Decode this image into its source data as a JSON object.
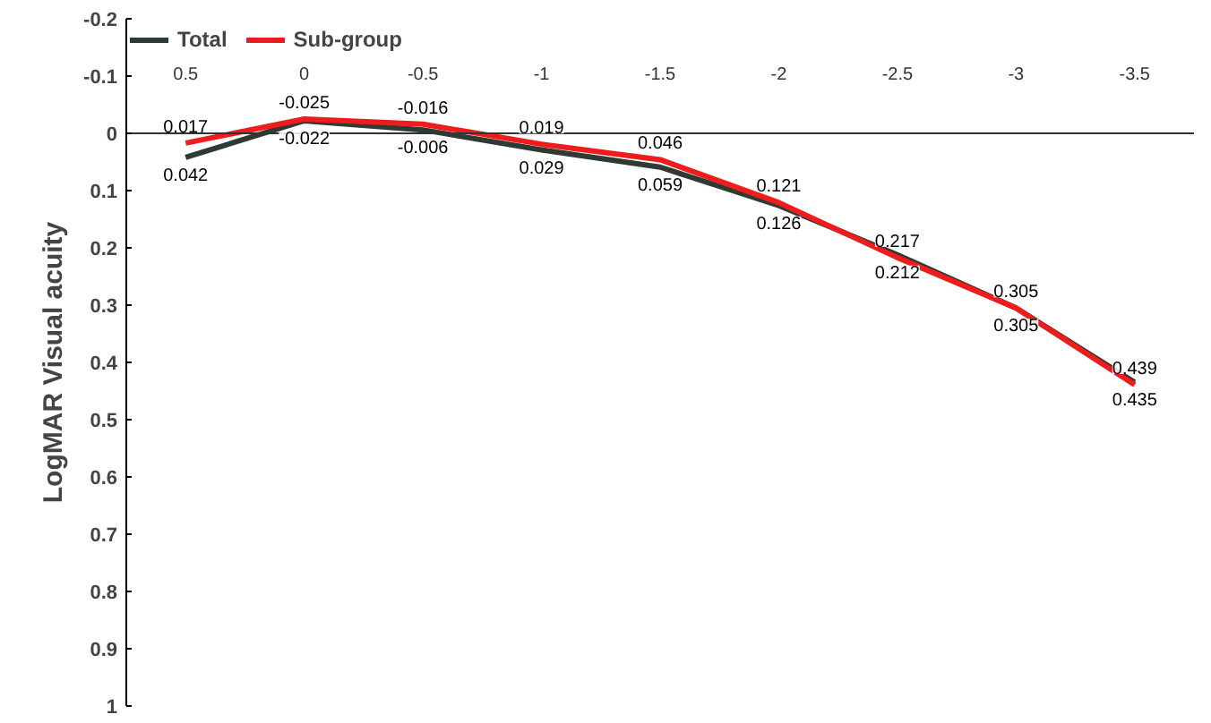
{
  "chart_data": {
    "type": "line",
    "ylabel": "LogMAR Visual acuity",
    "categories": [
      "0.5",
      "0",
      "-0.5",
      "-1",
      "-1.5",
      "-2",
      "-2.5",
      "-3",
      "-3.5"
    ],
    "series": [
      {
        "name": "Total",
        "color": "#2e3a32",
        "values": [
          0.042,
          -0.022,
          -0.006,
          0.029,
          0.059,
          0.126,
          0.212,
          0.305,
          0.435
        ]
      },
      {
        "name": "Sub-group",
        "color": "#ee1c1c",
        "values": [
          0.017,
          -0.025,
          -0.016,
          0.019,
          0.046,
          0.121,
          0.217,
          0.305,
          0.439
        ]
      }
    ],
    "ylim": [
      1,
      -0.2
    ],
    "yticks": [
      -0.2,
      -0.1,
      0,
      0.1,
      0.2,
      0.3,
      0.4,
      0.5,
      0.6,
      0.7,
      0.8,
      0.9,
      1
    ],
    "legend": "top left",
    "data_labels": true,
    "marker": "none",
    "line_style": "solid"
  }
}
